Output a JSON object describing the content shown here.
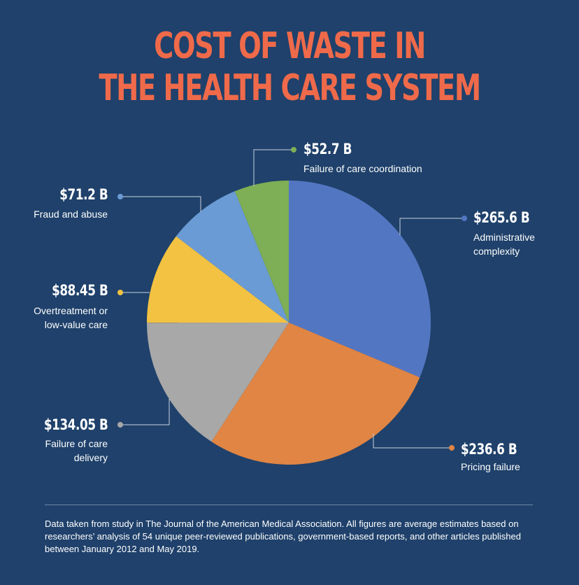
{
  "title_line1": "COST OF WASTE IN",
  "title_line2": "THE HEALTH CARE SYSTEM",
  "chart_data": {
    "type": "pie",
    "slices": [
      {
        "label": "$265.6 B",
        "description": "Administrative\ncomplexity",
        "value": 265.6,
        "color": "#5376c2"
      },
      {
        "label": "$236.6 B",
        "description": "Pricing failure",
        "value": 236.6,
        "color": "#e08544"
      },
      {
        "label": "$134.05 B",
        "description": "Failure of care\ndelivery",
        "value": 134.05,
        "color": "#a8a8a8"
      },
      {
        "label": "$88.45 B",
        "description": "Overtreatment or\nlow-value care",
        "value": 88.45,
        "color": "#f3c242"
      },
      {
        "label": "$71.2 B",
        "description": "Fraud and abuse",
        "value": 71.2,
        "color": "#6a9bd4"
      },
      {
        "label": "$52.7 B",
        "description": "Failure of care coordination",
        "value": 52.7,
        "color": "#7eae55"
      }
    ]
  },
  "source_note": "Data taken from study in The Journal of the American Medical Association. All figures are average estimates based on researchers’ analysis of 54 unique peer-reviewed publications, government-based reports, and other articles published between January 2012 and May 2019."
}
